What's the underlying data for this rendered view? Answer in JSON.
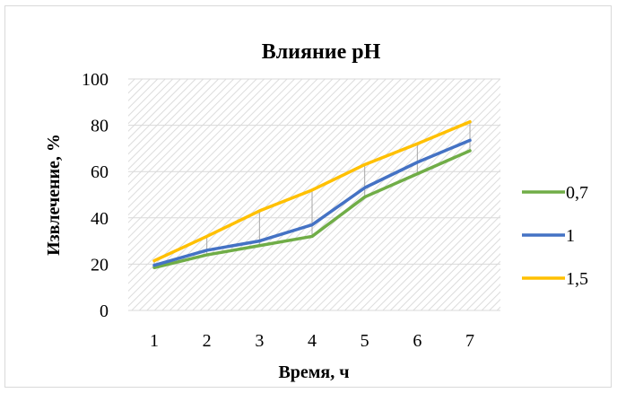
{
  "chart_data": {
    "type": "line",
    "title": "Влияние pH",
    "xlabel": "Время, ч",
    "ylabel": "Извлечение, %",
    "categories": [
      "1",
      "2",
      "3",
      "4",
      "5",
      "6",
      "7"
    ],
    "ylim": [
      0,
      100
    ],
    "yticks": [
      0,
      20,
      40,
      60,
      80,
      100
    ],
    "grid": true,
    "legend_position": "right",
    "series": [
      {
        "name": "0,7",
        "color": "#70ad47",
        "values": [
          18.5,
          24,
          28,
          32,
          49,
          59,
          69
        ]
      },
      {
        "name": "1",
        "color": "#4472c4",
        "values": [
          19.5,
          26,
          30,
          37,
          53,
          64,
          73.5
        ]
      },
      {
        "name": "1,5",
        "color": "#ffc000",
        "values": [
          21.5,
          32,
          43,
          52,
          63,
          72,
          81.5
        ]
      }
    ]
  }
}
